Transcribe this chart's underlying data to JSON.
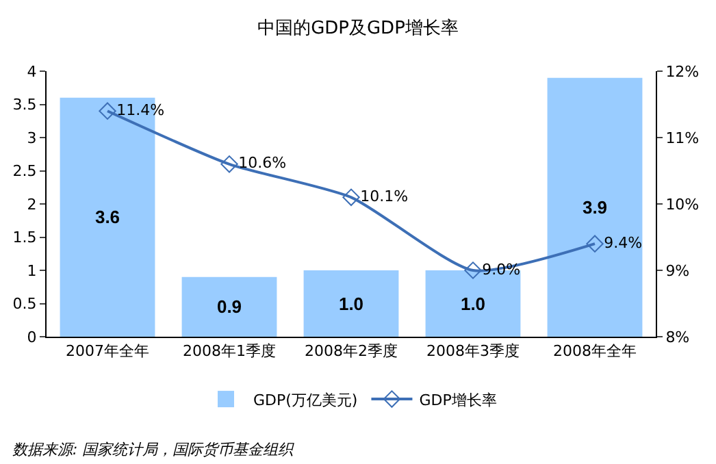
{
  "chart_data": {
    "type": "bar",
    "title": "中国的GDP及GDP增长率",
    "categories": [
      "2007年全年",
      "2008年1季度",
      "2008年2季度",
      "2008年3季度",
      "2008年全年"
    ],
    "series": [
      {
        "name": "GDP(万亿美元)",
        "color": "#99ccff",
        "values": [
          3.6,
          0.9,
          1.0,
          1.0,
          3.9
        ],
        "value_labels": [
          "3.6",
          "0.9",
          "1.0",
          "1.0",
          "3.9"
        ]
      },
      {
        "name": "GDP增长率",
        "type": "line",
        "axis": "y2",
        "color": "#3d6fb6",
        "values": [
          11.4,
          10.6,
          10.1,
          9.0,
          9.4
        ],
        "value_labels": [
          "11.4%",
          "10.6%",
          "10.1%",
          "9.0%",
          "9.4%"
        ]
      }
    ],
    "ylim": [
      0,
      4
    ],
    "yticks": [
      0,
      0.5,
      1,
      1.5,
      2,
      2.5,
      3,
      3.5,
      4
    ],
    "y2lim": [
      8,
      12
    ],
    "y2ticks": [
      {
        "value": 8,
        "label": "8%"
      },
      {
        "value": 9,
        "label": "9%"
      },
      {
        "value": 10,
        "label": "10%"
      },
      {
        "value": 11,
        "label": "11%"
      },
      {
        "value": 12,
        "label": "12%"
      }
    ],
    "marker": "diamond",
    "line_style": "solid",
    "legend": "bottom",
    "grid": false,
    "annotations": [
      "数据来源: 国家统计局，国际货币基金组织"
    ]
  }
}
